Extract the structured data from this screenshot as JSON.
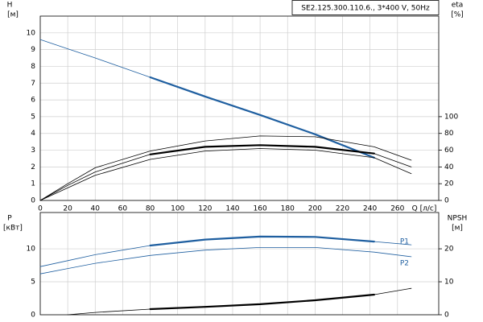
{
  "chart_data": [
    {
      "type": "line",
      "title": "SE2.125.300.110.6., 3*400 V, 50Hz",
      "y_label": "H",
      "y_unit": "[м]",
      "y2_label": "eta",
      "y2_unit": "[%]",
      "x_label": "Q [л/с]",
      "x": [
        0,
        20,
        40,
        80,
        120,
        160,
        200,
        243,
        270
      ],
      "xlim": [
        0,
        290
      ],
      "xticks": [
        0,
        20,
        40,
        60,
        80,
        100,
        120,
        140,
        160,
        180,
        200,
        220,
        240,
        260
      ],
      "x_tick_labels": true,
      "ylim": [
        0,
        11
      ],
      "yticks": [
        0,
        1,
        2,
        3,
        4,
        5,
        6,
        7,
        8,
        9,
        10
      ],
      "y2lim": [
        0,
        220
      ],
      "y2ticks": [
        0,
        20,
        40,
        60,
        80,
        100
      ],
      "grid": true,
      "series": [
        {
          "color": "#1f5fa0",
          "width": 0.8,
          "values": [
            9.6,
            9.05,
            8.5,
            7.35,
            6.2,
            5.1,
            3.95,
            2.55,
            null
          ]
        },
        {
          "color": "#1f5fa0",
          "width": 2.2,
          "values": [
            null,
            null,
            null,
            7.35,
            6.2,
            5.1,
            3.95,
            2.55,
            null
          ]
        },
        {
          "color": "#000000",
          "width": 0.8,
          "axis": "y2",
          "values": [
            0,
            20,
            39,
            59,
            71,
            77,
            76,
            64,
            48
          ]
        },
        {
          "color": "#000000",
          "width": 0.8,
          "axis": "y2",
          "values": [
            0,
            18,
            34,
            55,
            64,
            66,
            64,
            56,
            40
          ]
        },
        {
          "color": "#000000",
          "width": 2.2,
          "axis": "y2",
          "values": [
            null,
            null,
            null,
            55,
            64,
            66,
            64,
            56,
            null
          ]
        },
        {
          "color": "#000000",
          "width": 0.8,
          "axis": "y2",
          "values": [
            0,
            15,
            30,
            49,
            59,
            62,
            60,
            51,
            32
          ]
        }
      ]
    },
    {
      "type": "line",
      "y_label": "P",
      "y_unit": "[кВт]",
      "y2_label": "NPSH",
      "y2_unit": "[м]",
      "x": [
        0,
        20,
        40,
        80,
        120,
        160,
        200,
        243,
        270
      ],
      "xlim": [
        0,
        290
      ],
      "xticks": [
        0,
        20,
        40,
        60,
        80,
        100,
        120,
        140,
        160,
        180,
        200,
        220,
        240,
        260
      ],
      "x_tick_labels": false,
      "ylim": [
        0,
        15.5
      ],
      "yticks": [
        0,
        5,
        10
      ],
      "y2lim": [
        0,
        31
      ],
      "y2ticks": [
        0,
        10,
        20
      ],
      "grid": true,
      "series": [
        {
          "name": "P1",
          "color": "#1f5fa0",
          "width": 0.8,
          "values": [
            7.3,
            8.2,
            9.1,
            10.5,
            11.4,
            11.85,
            11.8,
            11.1,
            10.6
          ]
        },
        {
          "color": "#1f5fa0",
          "width": 2.2,
          "values": [
            null,
            null,
            null,
            10.5,
            11.4,
            11.85,
            11.8,
            11.1,
            null
          ]
        },
        {
          "name": "P2",
          "color": "#1f5fa0",
          "width": 0.8,
          "values": [
            6.2,
            7.0,
            7.8,
            9.0,
            9.8,
            10.2,
            10.2,
            9.5,
            8.8
          ]
        },
        {
          "color": "#000000",
          "width": 0.8,
          "axis": "y2",
          "values": [
            null,
            0,
            0.7,
            1.7,
            2.4,
            3.2,
            4.4,
            6.1,
            8.0
          ]
        },
        {
          "color": "#000000",
          "width": 2.2,
          "axis": "y2",
          "values": [
            null,
            null,
            null,
            1.7,
            2.4,
            3.2,
            4.4,
            6.1,
            null
          ]
        }
      ]
    }
  ]
}
